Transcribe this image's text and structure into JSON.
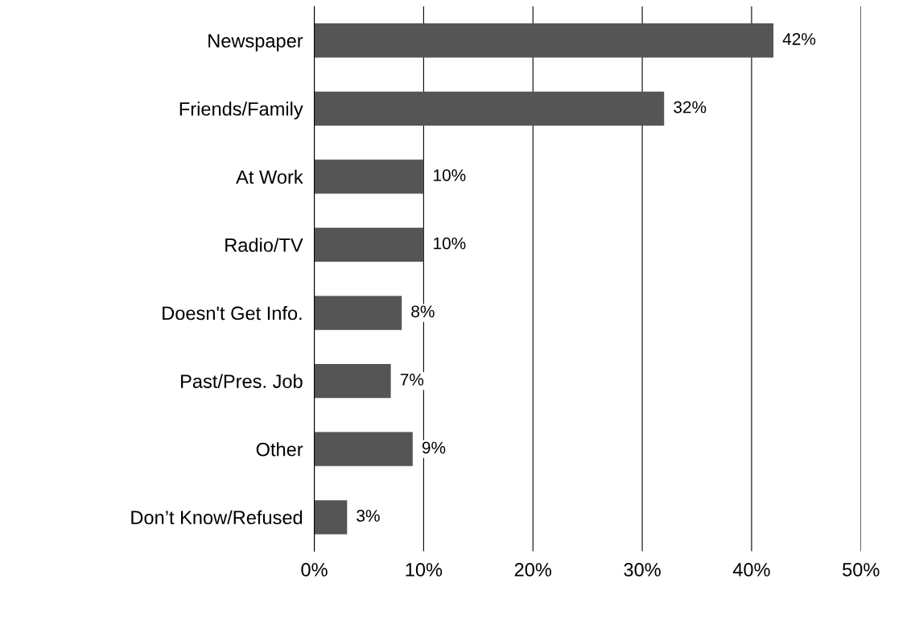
{
  "chart_data": {
    "type": "bar",
    "orientation": "horizontal",
    "categories": [
      "Newspaper",
      "Friends/Family",
      "At Work",
      "Radio/TV",
      "Doesn't Get Info.",
      "Past/Pres. Job",
      "Other",
      "Don’t Know/Refused"
    ],
    "values": [
      42,
      32,
      10,
      10,
      8,
      7,
      9,
      3
    ],
    "value_labels": [
      "42%",
      "32%",
      "10%",
      "10%",
      "8%",
      "7%",
      "9%",
      "3%"
    ],
    "color": "#555555",
    "xlim": [
      0,
      50
    ],
    "xticks": [
      {
        "value": 0,
        "label": "0%"
      },
      {
        "value": 10,
        "label": "10%"
      },
      {
        "value": 20,
        "label": "20%"
      },
      {
        "value": 30,
        "label": "30%"
      },
      {
        "value": 40,
        "label": "40%"
      },
      {
        "value": 50,
        "label": "50%"
      }
    ],
    "grid": "x"
  }
}
